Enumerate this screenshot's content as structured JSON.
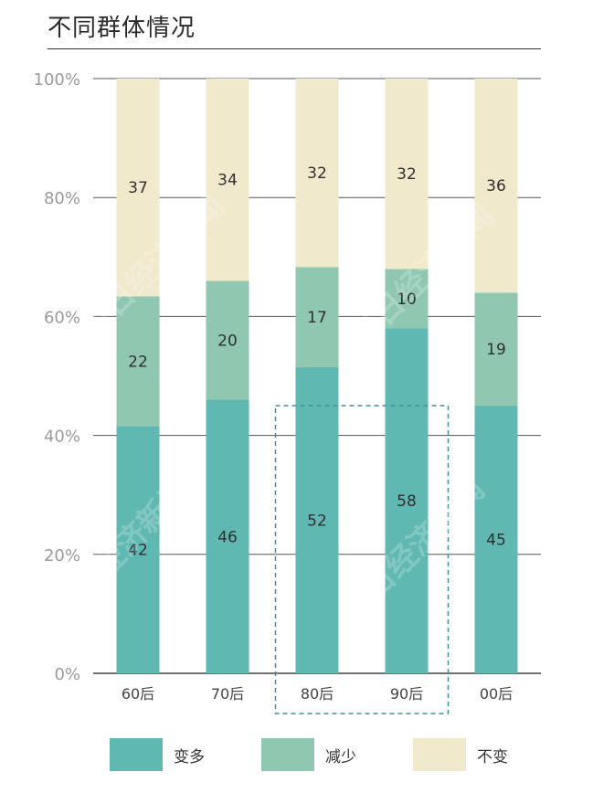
{
  "title": "不同群体情况",
  "colors": {
    "more": "#5FB8B1",
    "less": "#8FC7B1",
    "same": "#F0E9CC"
  },
  "chart_data": {
    "type": "bar",
    "stacked": true,
    "categories": [
      "60后",
      "70后",
      "80后",
      "90后",
      "00后"
    ],
    "series": [
      {
        "name": "变多",
        "values": [
          42,
          46,
          52,
          58,
          45
        ]
      },
      {
        "name": "减少",
        "values": [
          22,
          20,
          17,
          10,
          19
        ]
      },
      {
        "name": "不变",
        "values": [
          37,
          34,
          32,
          32,
          36
        ]
      }
    ],
    "yticks": [
      "0%",
      "20%",
      "40%",
      "60%",
      "80%",
      "100%"
    ],
    "ylim": [
      0,
      100
    ],
    "highlight_categories": [
      "80后",
      "90后"
    ],
    "grid": true,
    "legend_position": "bottom"
  },
  "legend": [
    {
      "label": "变多"
    },
    {
      "label": "减少"
    },
    {
      "label": "不变"
    }
  ],
  "watermark": "每日经济新闻"
}
